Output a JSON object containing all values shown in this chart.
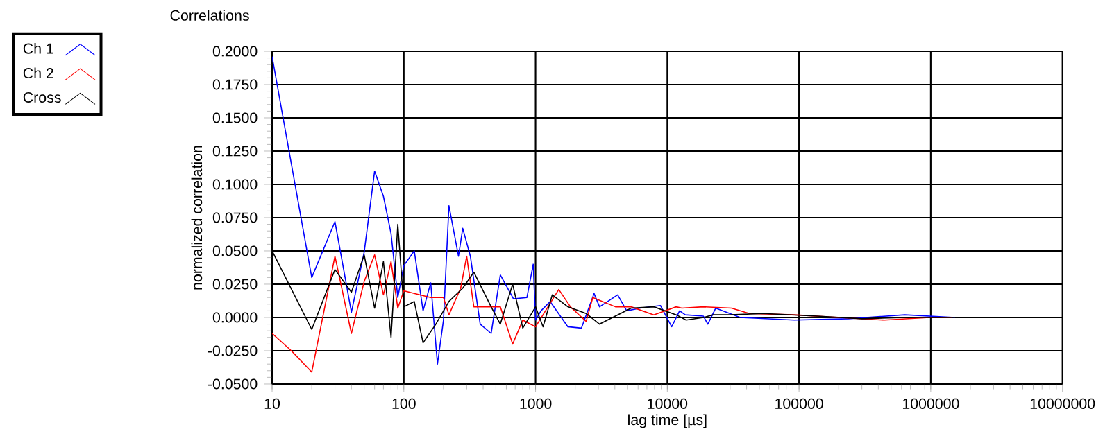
{
  "chart_data": {
    "type": "line",
    "title": "Correlations",
    "xlabel": "lag time [µs]",
    "ylabel": "normalized correlation",
    "log": "x",
    "grid": true,
    "legend": "top left",
    "marker": "none",
    "line_style": "solid",
    "xlim": [
      10,
      10000000
    ],
    "xticks": [
      10,
      100,
      1000,
      10000,
      100000,
      1000000,
      10000000
    ],
    "ylim": [
      -0.05,
      0.2
    ],
    "yticks": [
      {
        "value": -0.05,
        "label": "-0.0500"
      },
      {
        "value": -0.025,
        "label": "-0.0250"
      },
      {
        "value": 0,
        "label": "0.0000"
      },
      {
        "value": 0.025,
        "label": "0.0250"
      },
      {
        "value": 0.05,
        "label": "0.0500"
      },
      {
        "value": 0.075,
        "label": "0.0750"
      },
      {
        "value": 0.1,
        "label": "0.1000"
      },
      {
        "value": 0.125,
        "label": "0.1250"
      },
      {
        "value": 0.15,
        "label": "0.1500"
      },
      {
        "value": 0.175,
        "label": "0.1750"
      },
      {
        "value": 0.2,
        "label": "0.2000"
      }
    ],
    "series": [
      {
        "name": "Ch 1",
        "color": "#0000ff",
        "x": [
          10,
          20,
          30,
          40,
          50,
          60,
          70,
          80,
          90,
          100,
          120,
          140,
          160,
          180,
          200,
          220,
          260,
          280,
          320,
          380,
          460,
          540,
          680,
          860,
          960,
          1000,
          1100,
          1290,
          1760,
          2230,
          2780,
          3060,
          4200,
          4920,
          6230,
          8870,
          10800,
          12400,
          13700,
          18800,
          20300,
          23300,
          35800,
          92000,
          237000,
          635000,
          1530000
        ],
        "values": [
          0.196,
          0.03,
          0.072,
          0.004,
          0.049,
          0.11,
          0.091,
          0.063,
          0.015,
          0.039,
          0.05,
          0.005,
          0.026,
          -0.035,
          -0.002,
          0.084,
          0.046,
          0.067,
          0.046,
          -0.005,
          -0.012,
          0.032,
          0.014,
          0.015,
          0.04,
          -0.002,
          0.005,
          0.012,
          -0.007,
          -0.008,
          0.018,
          0.008,
          0.017,
          0.005,
          0.007,
          0.009,
          -0.007,
          0.005,
          0.002,
          0.001,
          -0.005,
          0.007,
          0,
          -0.002,
          -0.001,
          0.002,
          0
        ]
      },
      {
        "name": "Ch 2",
        "color": "#ff0000",
        "x": [
          10,
          14,
          20,
          30,
          40,
          50,
          60,
          70,
          80,
          90,
          100,
          160,
          200,
          220,
          270,
          300,
          340,
          460,
          540,
          670,
          800,
          1000,
          1500,
          1840,
          2420,
          2720,
          4040,
          5320,
          7900,
          11700,
          12900,
          18800,
          30700,
          42000,
          92000,
          202000,
          445000,
          980000,
          1450000
        ],
        "values": [
          -0.012,
          -0.025,
          -0.041,
          0.046,
          -0.012,
          0.027,
          0.047,
          0.017,
          0.042,
          0.007,
          0.02,
          0.015,
          0.015,
          0.002,
          0.022,
          0.046,
          0.008,
          0.008,
          0.008,
          -0.02,
          -0.002,
          -0.007,
          0.021,
          0.008,
          -0.003,
          0.015,
          0.008,
          0.008,
          0.002,
          0.008,
          0.007,
          0.008,
          0.007,
          0.003,
          0.002,
          0,
          -0.002,
          0,
          0
        ]
      },
      {
        "name": "Cross",
        "color": "#000000",
        "x": [
          10,
          20,
          30,
          40,
          50,
          60,
          70,
          80,
          90,
          100,
          120,
          140,
          175,
          220,
          280,
          340,
          460,
          540,
          670,
          800,
          1000,
          1140,
          1340,
          1760,
          2420,
          3060,
          5320,
          7900,
          11700,
          13900,
          18800,
          22300,
          30100,
          53300,
          137000,
          301000,
          660000,
          1530000
        ],
        "values": [
          0.05,
          -0.009,
          0.036,
          0.019,
          0.047,
          0.007,
          0.042,
          -0.015,
          0.07,
          0.008,
          0.012,
          -0.019,
          -0.005,
          0.012,
          0.022,
          0.034,
          0.008,
          -0.005,
          0.025,
          -0.008,
          0.008,
          -0.007,
          0.017,
          0.008,
          0.003,
          -0.005,
          0.007,
          0.008,
          0.002,
          -0.002,
          0,
          0.002,
          0.002,
          0.003,
          0.001,
          -0.001,
          0,
          0
        ]
      }
    ]
  }
}
